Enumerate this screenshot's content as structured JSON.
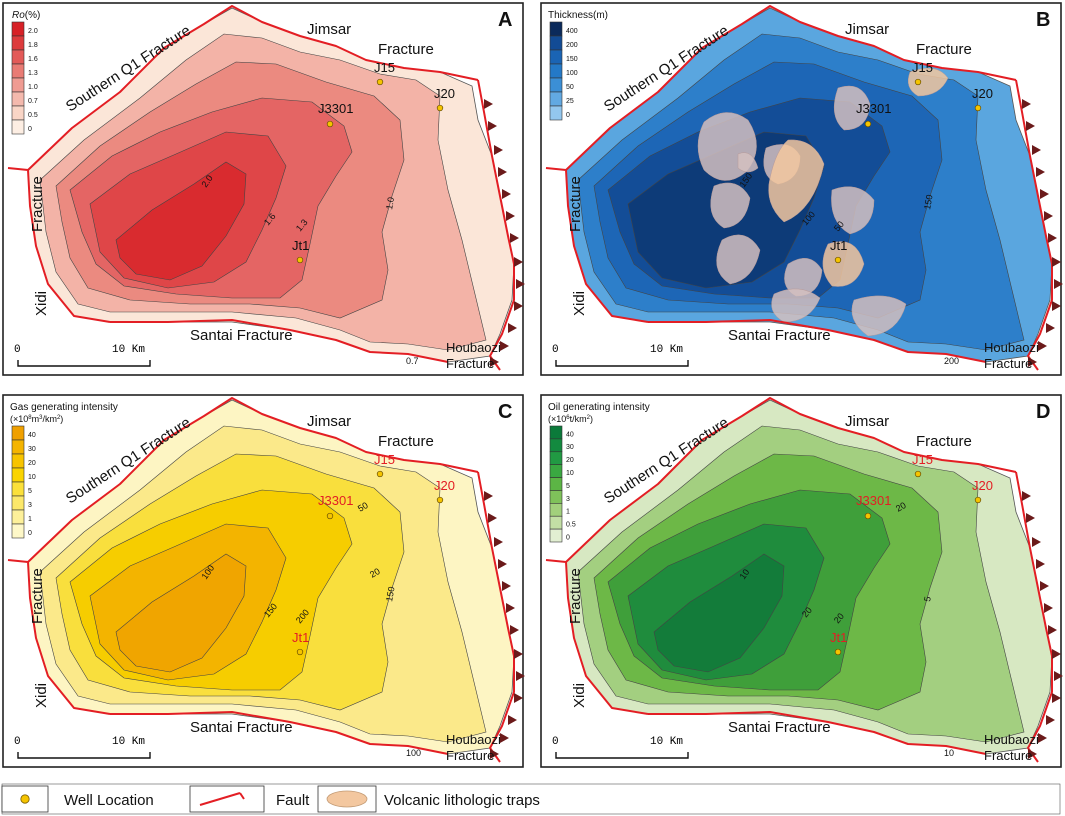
{
  "panels": [
    {
      "letter": "A",
      "legend_title_parts": [
        "Ro",
        "(%)"
      ],
      "legend_values": [
        "2.0",
        "1.8",
        "1.6",
        "1.3",
        "1.0",
        "0.7",
        "0.5",
        "0"
      ],
      "legend_colors": [
        "#d72127",
        "#dd3b3d",
        "#e35a58",
        "#e97b74",
        "#ef9b92",
        "#f4b9ad",
        "#f9d5c6",
        "#fdeee3"
      ],
      "bands": [
        "#fbe6d8",
        "#f3b3a7",
        "#eb8a80",
        "#e46564",
        "#df4648",
        "#d92b2f"
      ],
      "contour_labels": [
        "2.0",
        "1.6",
        "1.3",
        "1.0",
        "0.7"
      ],
      "wells": [
        "J15",
        "J3301",
        "J20",
        "Jt1"
      ],
      "well_label_color": "#111111",
      "has_traps": false
    },
    {
      "letter": "B",
      "legend_title": "Thickness(m)",
      "legend_values": [
        "400",
        "200",
        "150",
        "100",
        "50",
        "25",
        "0"
      ],
      "legend_colors": [
        "#0b2a5b",
        "#124b95",
        "#1a64b4",
        "#2479c7",
        "#3b8fd6",
        "#62a9e2",
        "#93c7ee"
      ],
      "bands": [
        "#5aa6df",
        "#2d7fca",
        "#1d66b6",
        "#134d97",
        "#0d3b78"
      ],
      "contour_labels": [
        "150",
        "100",
        "50",
        "150",
        "200"
      ],
      "wells": [
        "J15",
        "J3301",
        "J20",
        "Jt1"
      ],
      "well_label_color": "#111111",
      "has_traps": true
    },
    {
      "letter": "C",
      "legend_title": "Gas generating intensity",
      "legend_unit": [
        "(×10",
        "8",
        "m",
        "3",
        "/km",
        "2",
        ")"
      ],
      "legend_values": [
        "40",
        "30",
        "20",
        "10",
        "5",
        "3",
        "1",
        "0"
      ],
      "legend_colors": [
        "#f0a000",
        "#f4b400",
        "#f7c400",
        "#fad400",
        "#fbe03a",
        "#fce86a",
        "#fdf09a",
        "#fef8c8"
      ],
      "bands": [
        "#fdf5c3",
        "#fbe98a",
        "#f9df3d",
        "#f6cd00",
        "#f3b400",
        "#f0a500"
      ],
      "contour_labels": [
        "100",
        "150",
        "200",
        "150",
        "100",
        "50",
        "20"
      ],
      "wells": [
        "J15",
        "J3301",
        "J20",
        "Jt1"
      ],
      "well_label_color": "#e31e24",
      "has_traps": false
    },
    {
      "letter": "D",
      "legend_title": "Oil generating intensity",
      "legend_unit": [
        "(×10",
        "6",
        "t/km",
        "2",
        ")"
      ],
      "legend_values": [
        "40",
        "30",
        "20",
        "10",
        "5",
        "3",
        "1",
        "0.5",
        "0"
      ],
      "legend_colors": [
        "#0b7a3a",
        "#138a3f",
        "#219a43",
        "#3aa841",
        "#5cb545",
        "#7fc25a",
        "#a2d07c",
        "#c3dfa5",
        "#e2efd2"
      ],
      "bands": [
        "#d7e8c2",
        "#a3cf80",
        "#6db847",
        "#3f9f3a",
        "#1f8c3d",
        "#137c3a"
      ],
      "contour_labels": [
        "10",
        "20",
        "20",
        "5",
        "10",
        "20"
      ],
      "wells": [
        "J15",
        "J3301",
        "J20",
        "Jt1"
      ],
      "well_label_color": "#e31e24",
      "has_traps": false
    }
  ],
  "map_labels": {
    "southern": "Southern Q1 Fracture",
    "jimsar": "Jimsar",
    "fracture_top": "Fracture",
    "fracture_left": "Fracture",
    "xidi": "Xidi",
    "santai": "Santai Fracture",
    "houbaozi": "Houbaozi",
    "fracture_bottom": "Fracture"
  },
  "scale": {
    "zero": "0",
    "ten": "10 Km"
  },
  "legend": {
    "well": "Well Location",
    "fault": "Fault",
    "traps": "Volcanic lithologic traps"
  },
  "colors": {
    "fault": "#e31e24",
    "well_fill": "#f5c400",
    "trap_fill": "#f3c79f",
    "thrust_tick": "#6b1a1a"
  }
}
